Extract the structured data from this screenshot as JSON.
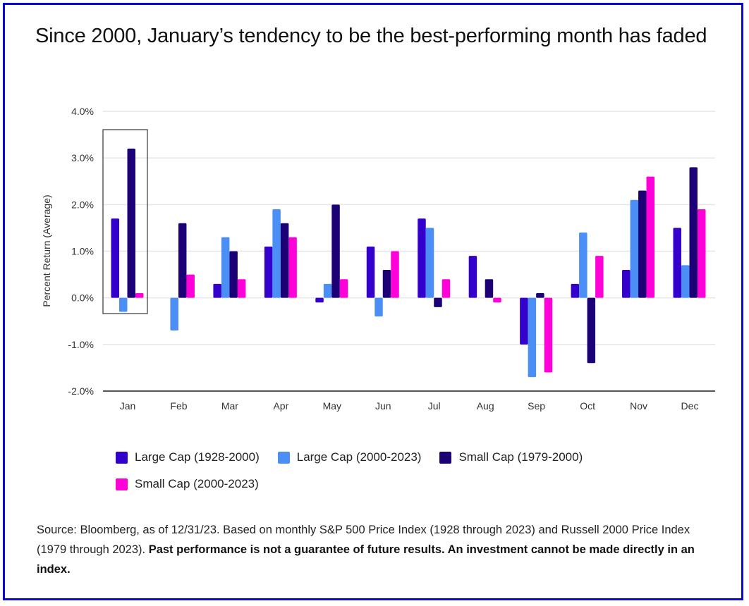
{
  "title": "Since 2000, January’s tendency to be the best-performing month has faded",
  "chart_data": {
    "type": "bar",
    "title": "Since 2000, January’s tendency to be the best-performing month has faded",
    "xlabel": "",
    "ylabel": "Percent Return (Average)",
    "ylim": [
      -2.0,
      4.0
    ],
    "yticks": [
      4.0,
      3.0,
      2.0,
      1.0,
      0.0,
      -1.0,
      -2.0
    ],
    "ytick_labels": [
      "4.0%",
      "3.0%",
      "2.0%",
      "1.0%",
      "0.0%",
      "-1.0%",
      "-2.0%"
    ],
    "grid": true,
    "legend_position": "bottom",
    "categories": [
      "Jan",
      "Feb",
      "Mar",
      "Apr",
      "May",
      "Jun",
      "Jul",
      "Aug",
      "Sep",
      "Oct",
      "Nov",
      "Dec"
    ],
    "series": [
      {
        "name": "Large Cap (1928-2000)",
        "color": "#3300cc",
        "values": [
          1.7,
          0.0,
          0.3,
          1.1,
          -0.1,
          1.1,
          1.7,
          0.9,
          -1.0,
          0.3,
          0.6,
          1.5
        ]
      },
      {
        "name": "Large Cap (2000-2023)",
        "color": "#4b8ef5",
        "values": [
          -0.3,
          -0.7,
          1.3,
          1.9,
          0.3,
          -0.4,
          1.5,
          0.0,
          -1.7,
          1.4,
          2.1,
          0.7
        ]
      },
      {
        "name": "Small Cap (1979-2000)",
        "color": "#1c0075",
        "values": [
          3.2,
          1.6,
          1.0,
          1.6,
          2.0,
          0.6,
          -0.2,
          0.4,
          0.1,
          -1.4,
          2.3,
          2.8
        ]
      },
      {
        "name": "Small Cap (2000-2023)",
        "color": "#ff00d9",
        "values": [
          0.1,
          0.5,
          0.4,
          1.3,
          0.4,
          1.0,
          0.4,
          -0.1,
          -1.6,
          0.9,
          2.6,
          1.9
        ]
      }
    ],
    "annotations": [
      {
        "type": "highlight-box",
        "category": "Jan"
      }
    ]
  },
  "source": {
    "plain": "Source: Bloomberg, as of 12/31/23. Based on monthly S&P 500 Price Index (1928 through 2023) and Russell 2000 Price Index (1979 through 2023). ",
    "bold": "Past performance is not a guarantee of future results. An investment cannot be made directly in an index."
  }
}
